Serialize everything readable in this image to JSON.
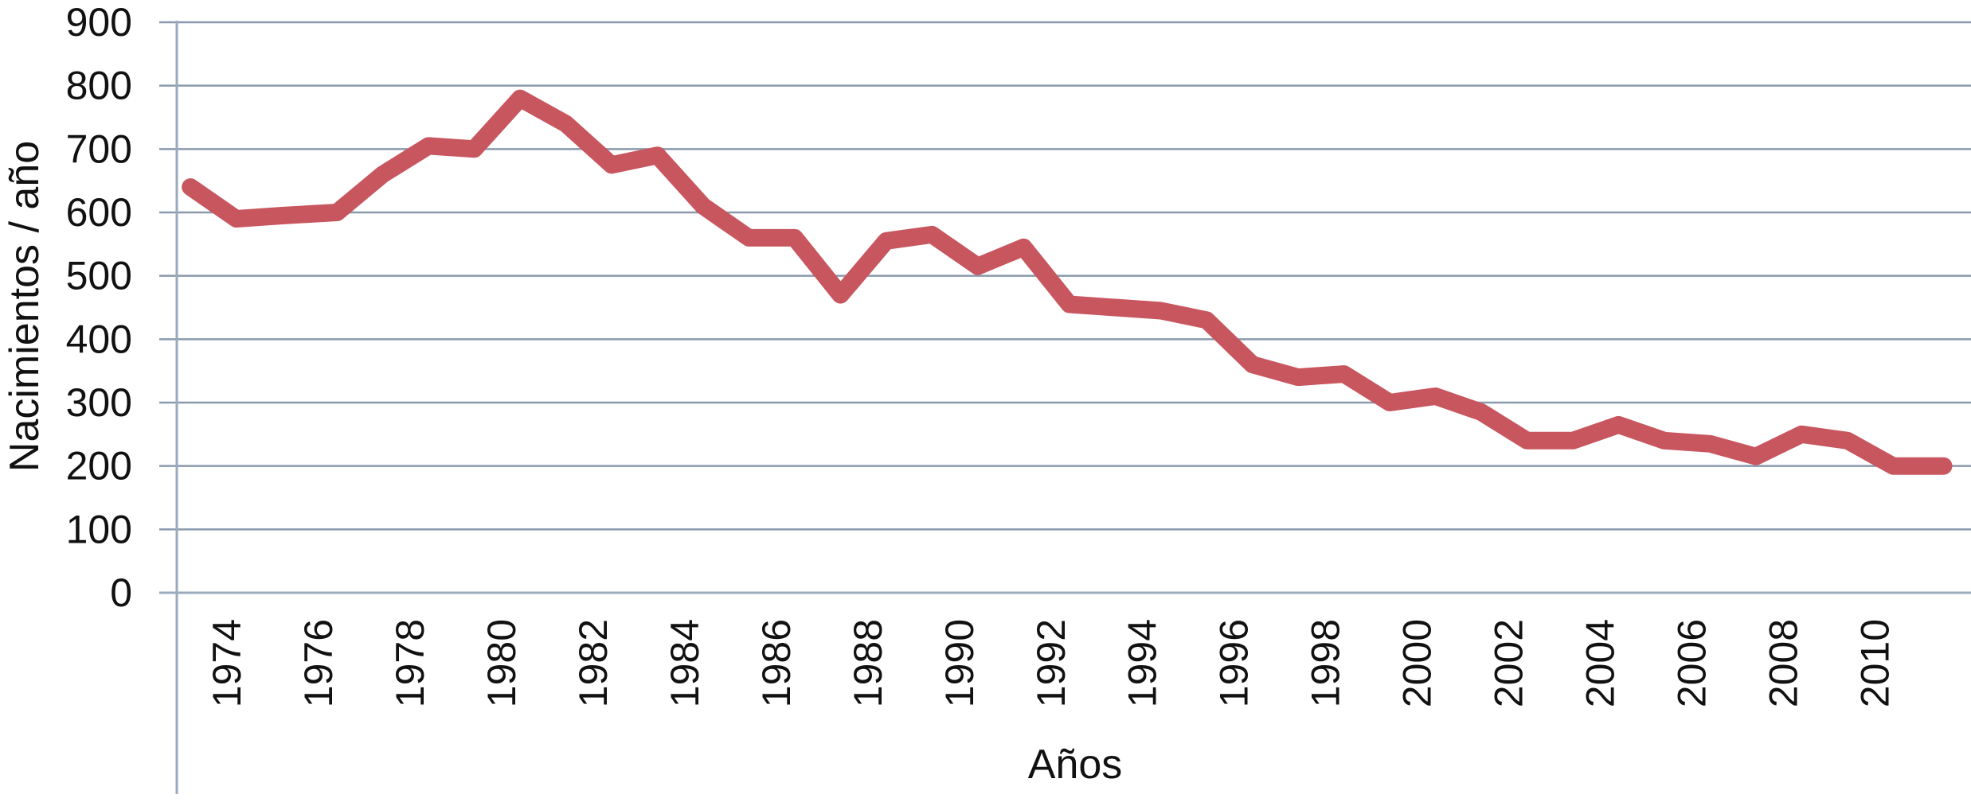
{
  "chart_data": {
    "type": "line",
    "title": "",
    "xlabel": "Años",
    "ylabel": "Nacimientos / año",
    "ylim": [
      0,
      900
    ],
    "yticks": [
      0,
      100,
      200,
      300,
      400,
      500,
      600,
      700,
      800,
      900
    ],
    "xlim": [
      1972.9,
      2012.1
    ],
    "xtick_labels": [
      "1974",
      "1976",
      "1978",
      "1980",
      "1982",
      "1984",
      "1986",
      "1988",
      "1990",
      "1992",
      "1994",
      "1996",
      "1998",
      "2000",
      "2002",
      "2004",
      "2006",
      "2008",
      "2010"
    ],
    "grid": true,
    "legend": "none",
    "series": [
      {
        "color": "#c8565f",
        "x": [
          1973.2,
          1974.2,
          1975.2,
          1976.4,
          1977.4,
          1978.4,
          1979.4,
          1980.4,
          1981.4,
          1982.4,
          1983.4,
          1984.4,
          1985.4,
          1986.4,
          1987.4,
          1988.4,
          1989.4,
          1990.4,
          1991.4,
          1992.4,
          1993.4,
          1994.4,
          1995.4,
          1996.4,
          1997.4,
          1998.4,
          1999.4,
          2000.4,
          2001.4,
          2002.4,
          2003.4,
          2004.4,
          2005.4,
          2006.4,
          2007.4,
          2008.4,
          2009.4,
          2010.4,
          2011.5
        ],
        "y": [
          640,
          590,
          595,
          600,
          660,
          705,
          700,
          780,
          740,
          675,
          690,
          610,
          560,
          560,
          470,
          555,
          565,
          515,
          545,
          455,
          450,
          445,
          430,
          360,
          340,
          345,
          300,
          310,
          285,
          240,
          240,
          265,
          240,
          235,
          215,
          250,
          240,
          200,
          200
        ]
      }
    ]
  }
}
